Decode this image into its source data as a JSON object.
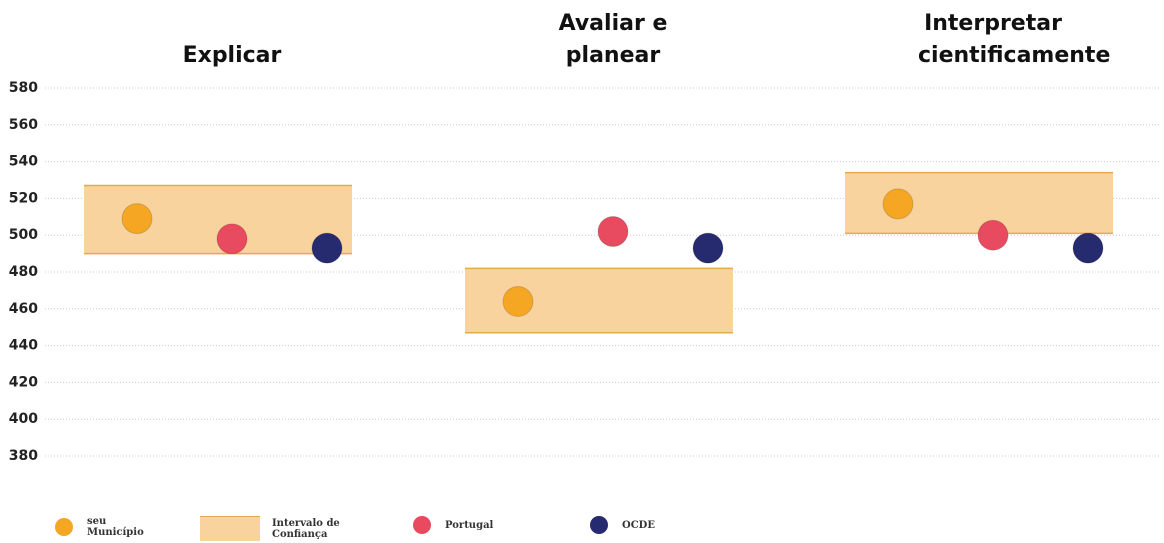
{
  "chart_data": {
    "type": "dot",
    "categories": [
      "Explicar",
      "Avaliar e planear",
      "Interpretar cientificamente"
    ],
    "series": [
      {
        "name": "seu Município",
        "color": "#f5a623",
        "values": [
          509,
          464,
          517
        ]
      },
      {
        "name": "Portugal",
        "color": "#e84a5f",
        "values": [
          498,
          502,
          500
        ]
      },
      {
        "name": "OCDE",
        "color": "#262a6e",
        "values": [
          493,
          493,
          493
        ]
      }
    ],
    "intervals": {
      "name": "Intervalo de Confiança",
      "color": "#f8d39e",
      "low": [
        490,
        447,
        501
      ],
      "high": [
        527,
        482,
        534
      ]
    },
    "ylim": [
      380,
      580
    ],
    "yticks": [
      380,
      400,
      420,
      440,
      460,
      480,
      500,
      520,
      540,
      560,
      580
    ],
    "grid": true
  }
}
